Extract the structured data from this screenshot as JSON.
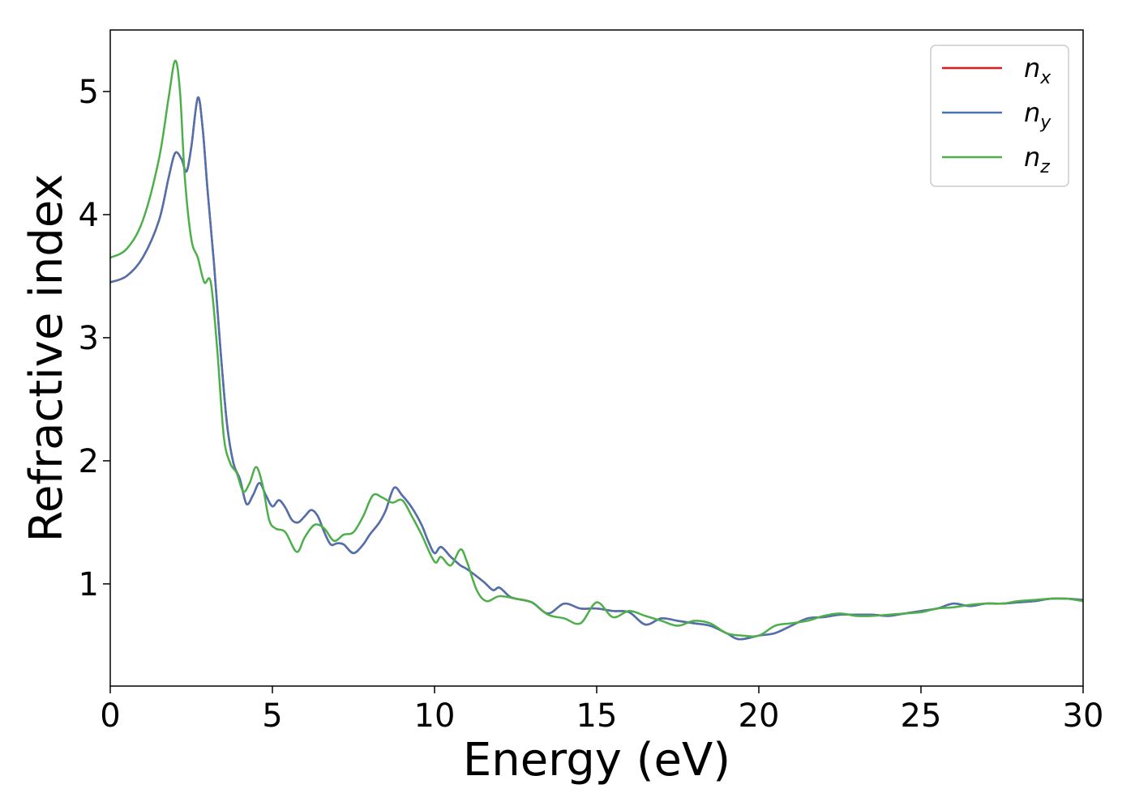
{
  "chart_data": {
    "type": "line",
    "title": "",
    "xlabel": "Energy (eV)",
    "ylabel": "Refractive index",
    "xlim": [
      0,
      30
    ],
    "ylim": [
      0.17,
      5.5
    ],
    "xticks": [
      0,
      5,
      10,
      15,
      20,
      25,
      30
    ],
    "yticks": [
      1,
      2,
      3,
      4,
      5
    ],
    "grid": false,
    "legend_position": "top-right",
    "series": [
      {
        "name": "n",
        "subscript": "x",
        "color": "#e41a1c",
        "x": [
          0,
          0.5,
          1.0,
          1.5,
          1.8,
          2.0,
          2.2,
          2.35,
          2.5,
          2.7,
          2.85,
          3.0,
          3.2,
          3.4,
          3.6,
          3.8,
          4.0,
          4.2,
          4.4,
          4.6,
          4.8,
          5.0,
          5.2,
          5.4,
          5.6,
          5.8,
          6.0,
          6.2,
          6.4,
          6.6,
          6.8,
          7.0,
          7.2,
          7.5,
          7.8,
          8.0,
          8.3,
          8.5,
          8.75,
          9.0,
          9.3,
          9.6,
          9.8,
          10.0,
          10.2,
          10.5,
          10.8,
          11.0,
          11.5,
          11.8,
          12.0,
          12.3,
          12.5,
          13.0,
          13.5,
          14.0,
          14.5,
          15.0,
          15.5,
          16.0,
          16.5,
          17.0,
          17.5,
          18.0,
          18.5,
          19.0,
          19.4,
          20.0,
          20.5,
          21.0,
          21.5,
          22.0,
          22.5,
          23.0,
          23.5,
          24.0,
          24.5,
          25.0,
          25.5,
          26.0,
          26.5,
          27.0,
          27.5,
          28.0,
          28.5,
          29.0,
          29.5,
          30.0
        ],
        "y": [
          3.45,
          3.5,
          3.65,
          3.95,
          4.3,
          4.5,
          4.45,
          4.35,
          4.55,
          4.95,
          4.7,
          4.2,
          3.6,
          2.9,
          2.3,
          1.98,
          1.85,
          1.65,
          1.72,
          1.82,
          1.72,
          1.63,
          1.68,
          1.62,
          1.52,
          1.5,
          1.55,
          1.6,
          1.55,
          1.42,
          1.32,
          1.33,
          1.32,
          1.25,
          1.32,
          1.4,
          1.5,
          1.6,
          1.78,
          1.72,
          1.62,
          1.48,
          1.35,
          1.25,
          1.3,
          1.22,
          1.15,
          1.12,
          1.02,
          0.95,
          0.97,
          0.9,
          0.88,
          0.85,
          0.76,
          0.84,
          0.8,
          0.8,
          0.78,
          0.77,
          0.67,
          0.72,
          0.7,
          0.68,
          0.66,
          0.6,
          0.55,
          0.58,
          0.6,
          0.66,
          0.72,
          0.73,
          0.75,
          0.75,
          0.75,
          0.74,
          0.76,
          0.78,
          0.8,
          0.84,
          0.82,
          0.84,
          0.84,
          0.85,
          0.86,
          0.88,
          0.88,
          0.87
        ]
      },
      {
        "name": "n",
        "subscript": "y",
        "color": "#4c72b0",
        "x": [
          0,
          0.5,
          1.0,
          1.5,
          1.8,
          2.0,
          2.2,
          2.35,
          2.5,
          2.7,
          2.85,
          3.0,
          3.2,
          3.4,
          3.6,
          3.8,
          4.0,
          4.2,
          4.4,
          4.6,
          4.8,
          5.0,
          5.2,
          5.4,
          5.6,
          5.8,
          6.0,
          6.2,
          6.4,
          6.6,
          6.8,
          7.0,
          7.2,
          7.5,
          7.8,
          8.0,
          8.3,
          8.5,
          8.75,
          9.0,
          9.3,
          9.6,
          9.8,
          10.0,
          10.2,
          10.5,
          10.8,
          11.0,
          11.5,
          11.8,
          12.0,
          12.3,
          12.5,
          13.0,
          13.5,
          14.0,
          14.5,
          15.0,
          15.5,
          16.0,
          16.5,
          17.0,
          17.5,
          18.0,
          18.5,
          19.0,
          19.4,
          20.0,
          20.5,
          21.0,
          21.5,
          22.0,
          22.5,
          23.0,
          23.5,
          24.0,
          24.5,
          25.0,
          25.5,
          26.0,
          26.5,
          27.0,
          27.5,
          28.0,
          28.5,
          29.0,
          29.5,
          30.0
        ],
        "y": [
          3.45,
          3.5,
          3.65,
          3.95,
          4.3,
          4.5,
          4.45,
          4.35,
          4.55,
          4.95,
          4.7,
          4.2,
          3.6,
          2.9,
          2.3,
          1.98,
          1.85,
          1.65,
          1.72,
          1.82,
          1.72,
          1.63,
          1.68,
          1.62,
          1.52,
          1.5,
          1.55,
          1.6,
          1.55,
          1.42,
          1.32,
          1.33,
          1.32,
          1.25,
          1.32,
          1.4,
          1.5,
          1.6,
          1.78,
          1.72,
          1.62,
          1.48,
          1.35,
          1.25,
          1.3,
          1.22,
          1.15,
          1.12,
          1.02,
          0.95,
          0.97,
          0.9,
          0.88,
          0.85,
          0.76,
          0.84,
          0.8,
          0.8,
          0.78,
          0.77,
          0.67,
          0.72,
          0.7,
          0.68,
          0.66,
          0.6,
          0.55,
          0.58,
          0.6,
          0.66,
          0.72,
          0.73,
          0.75,
          0.75,
          0.75,
          0.74,
          0.76,
          0.78,
          0.8,
          0.84,
          0.82,
          0.84,
          0.84,
          0.85,
          0.86,
          0.88,
          0.88,
          0.87
        ]
      },
      {
        "name": "n",
        "subscript": "z",
        "color": "#4daf4a",
        "x": [
          0,
          0.5,
          1.0,
          1.5,
          1.8,
          2.0,
          2.15,
          2.3,
          2.5,
          2.7,
          2.9,
          3.1,
          3.3,
          3.5,
          3.7,
          3.9,
          4.1,
          4.3,
          4.5,
          4.7,
          4.9,
          5.1,
          5.4,
          5.75,
          6.0,
          6.3,
          6.6,
          6.9,
          7.2,
          7.5,
          7.8,
          8.1,
          8.4,
          8.7,
          9.0,
          9.3,
          9.6,
          10.0,
          10.2,
          10.5,
          10.8,
          11.0,
          11.3,
          11.6,
          12.0,
          12.5,
          13.0,
          13.5,
          14.0,
          14.5,
          15.0,
          15.5,
          16.0,
          16.5,
          17.0,
          17.5,
          18.0,
          18.5,
          19.0,
          19.5,
          20.0,
          20.5,
          21.0,
          21.5,
          22.0,
          22.5,
          23.0,
          23.5,
          24.0,
          24.5,
          25.0,
          25.5,
          26.0,
          26.5,
          27.0,
          27.5,
          28.0,
          28.5,
          29.0,
          29.5,
          30.0
        ],
        "y": [
          3.65,
          3.72,
          3.95,
          4.45,
          4.95,
          5.25,
          5.0,
          4.3,
          3.8,
          3.65,
          3.45,
          3.45,
          2.9,
          2.2,
          1.98,
          1.9,
          1.75,
          1.82,
          1.95,
          1.8,
          1.52,
          1.45,
          1.42,
          1.26,
          1.38,
          1.48,
          1.45,
          1.35,
          1.4,
          1.42,
          1.55,
          1.72,
          1.7,
          1.66,
          1.68,
          1.55,
          1.4,
          1.18,
          1.22,
          1.15,
          1.28,
          1.18,
          0.95,
          0.86,
          0.9,
          0.88,
          0.85,
          0.75,
          0.72,
          0.68,
          0.85,
          0.73,
          0.78,
          0.74,
          0.7,
          0.66,
          0.7,
          0.68,
          0.6,
          0.58,
          0.58,
          0.66,
          0.68,
          0.7,
          0.74,
          0.76,
          0.74,
          0.74,
          0.75,
          0.76,
          0.77,
          0.8,
          0.81,
          0.83,
          0.84,
          0.84,
          0.86,
          0.87,
          0.88,
          0.88,
          0.86
        ]
      }
    ]
  }
}
